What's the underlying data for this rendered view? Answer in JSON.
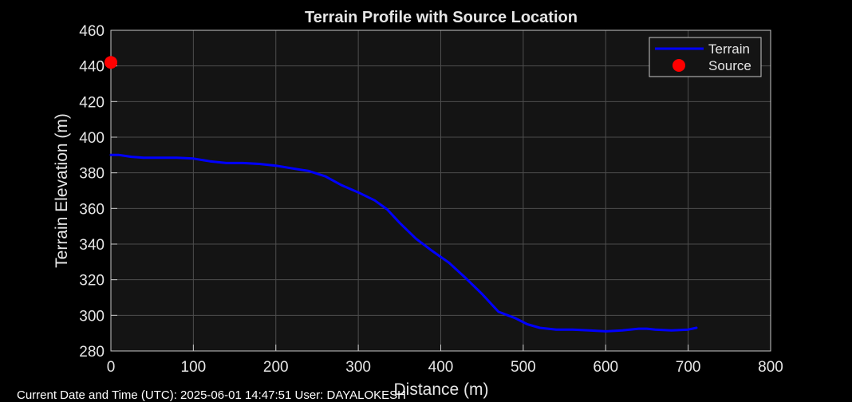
{
  "colors": {
    "background": "#000000",
    "plot_background": "#141414",
    "terrain_line": "#0000ff",
    "source_marker": "#ff0000",
    "text": "#e6e6e6",
    "grid": "#4d4d4d"
  },
  "chart_data": {
    "type": "line",
    "title": "Terrain Profile with Source Location",
    "xlabel": "Distance (m)",
    "ylabel": "Terrain Elevation (m)",
    "xlim": [
      0,
      800
    ],
    "ylim": [
      280,
      460
    ],
    "xticks": [
      0,
      100,
      200,
      300,
      400,
      500,
      600,
      700,
      800
    ],
    "yticks": [
      280,
      300,
      320,
      340,
      360,
      380,
      400,
      420,
      440,
      460
    ],
    "grid": true,
    "legend_position": "top-right",
    "series": [
      {
        "name": "Terrain",
        "marker_type": "line",
        "color": "#0000ff",
        "x": [
          0,
          10,
          25,
          40,
          60,
          80,
          100,
          120,
          140,
          160,
          180,
          200,
          220,
          240,
          260,
          280,
          300,
          320,
          335,
          350,
          370,
          390,
          410,
          430,
          450,
          470,
          490,
          505,
          520,
          540,
          560,
          580,
          600,
          620,
          640,
          650,
          660,
          680,
          700,
          710
        ],
        "y": [
          390,
          390,
          389,
          388.5,
          388.5,
          388.5,
          388,
          386.5,
          385.5,
          385.5,
          385,
          384,
          382.5,
          381,
          378,
          373,
          369,
          364.5,
          359.5,
          352,
          343,
          336,
          329.5,
          321,
          312,
          302,
          298.5,
          295,
          293,
          292,
          292,
          291.5,
          291,
          291.5,
          292.5,
          292.5,
          292,
          291.5,
          292,
          293
        ]
      },
      {
        "name": "Source",
        "marker_type": "point",
        "color": "#ff0000",
        "x": [
          0
        ],
        "y": [
          442
        ]
      }
    ]
  },
  "footer": {
    "text": "Current Date and Time (UTC): 2025-06-01 14:47:51  User: DAYALOKESH"
  }
}
